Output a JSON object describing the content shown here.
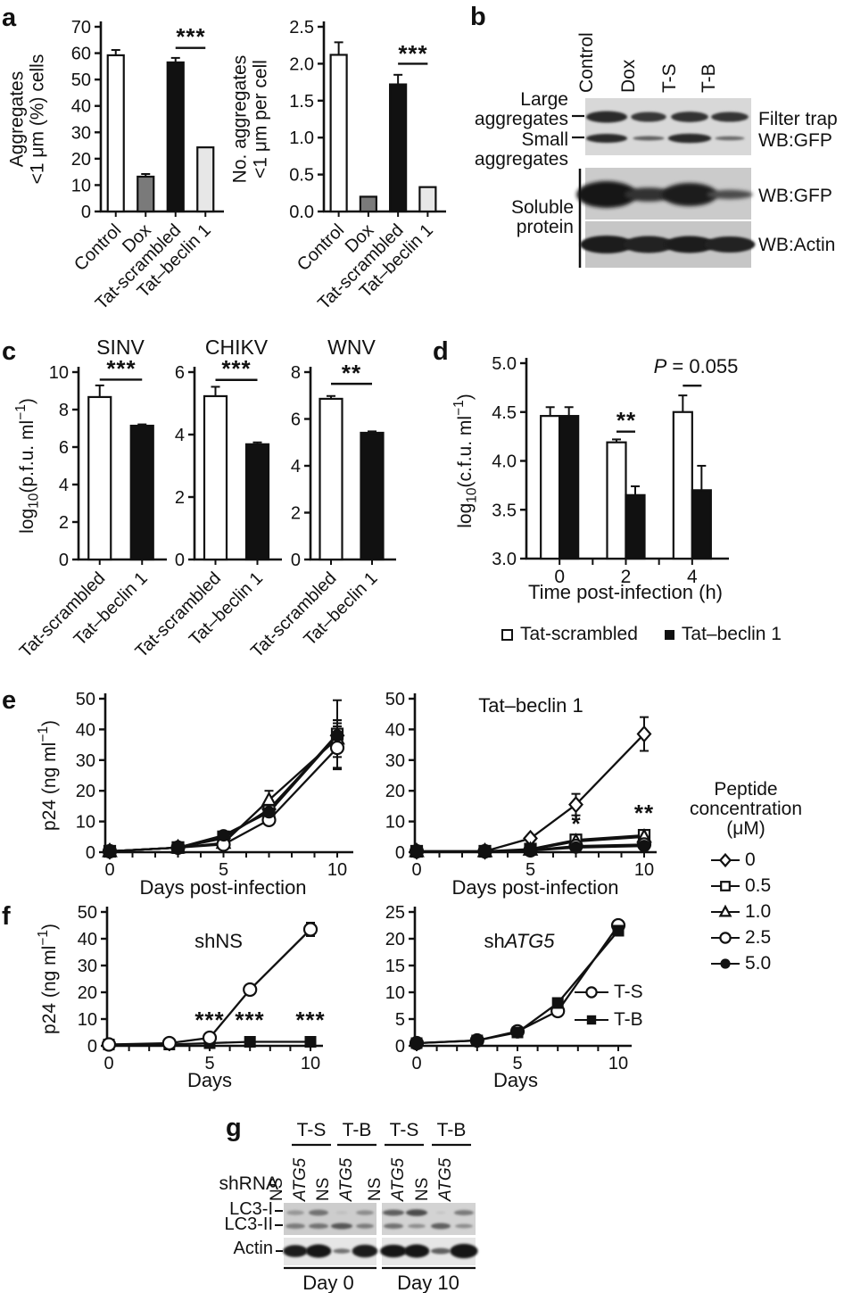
{
  "panels": {
    "a": {
      "letter": "a"
    },
    "b": {
      "letter": "b",
      "lanes": [
        "Control",
        "Dox",
        "T-S",
        "T-B"
      ],
      "left_labels": [
        [
          "Large",
          "aggregates"
        ],
        [
          "Small",
          "aggregates"
        ],
        [
          "Soluble",
          "protein"
        ]
      ],
      "right_labels": [
        "Filter trap",
        "WB:GFP",
        "WB:GFP",
        "WB:Actin"
      ],
      "blots": {
        "filter_trap": {
          "rows": [
            [
              {
                "i": 0.88,
                "w": 1.05,
                "h": 1
              },
              {
                "i": 0.8,
                "w": 0.9,
                "h": 0.85
              },
              {
                "i": 0.85,
                "w": 0.95,
                "h": 0.9
              },
              {
                "i": 0.82,
                "w": 0.95,
                "h": 0.85
              }
            ],
            [
              {
                "i": 0.88,
                "w": 1.05,
                "h": 1
              },
              {
                "i": 0.6,
                "w": 0.8,
                "h": 0.5
              },
              {
                "i": 0.88,
                "w": 1.1,
                "h": 1.05
              },
              {
                "i": 0.55,
                "w": 0.75,
                "h": 0.45
              }
            ]
          ]
        },
        "soluble_gfp": {
          "rows": [
            [
              {
                "i": 0.98,
                "w": 1.25,
                "h": 1.15
              },
              {
                "i": 0.85,
                "w": 1.0,
                "h": 0.6
              },
              {
                "i": 0.95,
                "w": 1.15,
                "h": 1.0
              },
              {
                "i": 0.7,
                "w": 0.95,
                "h": 0.4
              }
            ]
          ]
        },
        "actin": {
          "rows": [
            [
              {
                "i": 0.95,
                "w": 1.1,
                "h": 1
              },
              {
                "i": 0.93,
                "w": 1.05,
                "h": 0.95
              },
              {
                "i": 0.94,
                "w": 1.05,
                "h": 0.95
              },
              {
                "i": 0.92,
                "w": 1.05,
                "h": 0.9
              }
            ]
          ]
        }
      }
    },
    "c": {
      "letter": "c"
    },
    "d": {
      "letter": "d",
      "legend": [
        {
          "marker": "square-open",
          "label": "Tat-scrambled"
        },
        {
          "marker": "square-filled",
          "label": "Tat–beclin 1"
        }
      ]
    },
    "e": {
      "letter": "e",
      "legend": {
        "title_lines": [
          "Peptide",
          "concentration",
          "(μM)"
        ],
        "items": [
          {
            "marker": "diamond-open",
            "label": "0"
          },
          {
            "marker": "square-open",
            "label": "0.5"
          },
          {
            "marker": "triangle-open",
            "label": "1.0"
          },
          {
            "marker": "circle-open",
            "label": "2.5"
          },
          {
            "marker": "circle-filled",
            "label": "5.0"
          }
        ]
      }
    },
    "f": {
      "letter": "f"
    },
    "g": {
      "letter": "g",
      "shrna_label": "shRNA",
      "group_labels": [
        "T-S",
        "T-B",
        "T-S",
        "T-B"
      ],
      "lane_labels": [
        "NS",
        "ATG5",
        "NS",
        "ATG5",
        "NS",
        "ATG5",
        "NS",
        "ATG5"
      ],
      "row_labels": [
        "LC3-I",
        "LC3-II",
        "Actin"
      ],
      "day_labels": [
        "Day 0",
        "Day 10"
      ],
      "blots": {
        "lc3": [
          {
            "rows": [
              [
                {
                  "i": 0.3,
                  "w": 0.9,
                  "h": 0.8
                },
                {
                  "i": 0.5,
                  "w": 1.0,
                  "h": 1.0
                },
                {
                  "i": 0.08,
                  "w": 0.6,
                  "h": 0.5
                },
                {
                  "i": 0.35,
                  "w": 0.9,
                  "h": 0.8
                }
              ],
              [
                {
                  "i": 0.45,
                  "w": 1.0,
                  "h": 0.9
                },
                {
                  "i": 0.5,
                  "w": 1.0,
                  "h": 0.9
                },
                {
                  "i": 0.65,
                  "w": 1.1,
                  "h": 1.0
                },
                {
                  "i": 0.45,
                  "w": 0.9,
                  "h": 0.8
                }
              ]
            ]
          },
          {
            "rows": [
              [
                {
                  "i": 0.6,
                  "w": 1.1,
                  "h": 1.0
                },
                {
                  "i": 0.7,
                  "w": 1.1,
                  "h": 1.1
                },
                {
                  "i": 0.06,
                  "w": 0.5,
                  "h": 0.4
                },
                {
                  "i": 0.45,
                  "w": 1.0,
                  "h": 0.9
                }
              ],
              [
                {
                  "i": 0.5,
                  "w": 1.0,
                  "h": 0.9
                },
                {
                  "i": 0.35,
                  "w": 0.9,
                  "h": 0.7
                },
                {
                  "i": 0.6,
                  "w": 1.0,
                  "h": 1.0
                },
                {
                  "i": 0.35,
                  "w": 0.9,
                  "h": 0.7
                }
              ]
            ]
          }
        ],
        "actin": [
          {
            "rows": [
              [
                {
                  "i": 0.97,
                  "w": 1.05,
                  "h": 1.0
                },
                {
                  "i": 0.98,
                  "w": 1.1,
                  "h": 1.1
                },
                {
                  "i": 0.5,
                  "w": 0.75,
                  "h": 0.4
                },
                {
                  "i": 0.97,
                  "w": 1.1,
                  "h": 1.05
                }
              ]
            ]
          },
          {
            "rows": [
              [
                {
                  "i": 0.98,
                  "w": 1.15,
                  "h": 1.05
                },
                {
                  "i": 0.98,
                  "w": 1.1,
                  "h": 1.1
                },
                {
                  "i": 0.6,
                  "w": 0.85,
                  "h": 0.5
                },
                {
                  "i": 1.0,
                  "w": 1.2,
                  "h": 1.2
                }
              ]
            ]
          }
        ]
      }
    }
  },
  "chart_data": [
    {
      "id": "a1",
      "type": "bar",
      "ylabel_lines": [
        "Aggregates",
        "<1 μm (%) cells"
      ],
      "ylim": [
        0,
        70
      ],
      "yticks": [
        0,
        10,
        20,
        30,
        40,
        50,
        60,
        70
      ],
      "ytick_labels": [
        "0",
        "10",
        "20",
        "30",
        "40",
        "50",
        "60",
        "70"
      ],
      "categories": [
        "Control",
        "Dox",
        "Tat-scrambled",
        "Tat–beclin 1"
      ],
      "values": [
        59.2,
        13.2,
        56.5,
        24.3
      ],
      "errors": [
        2,
        1,
        1.7,
        0
      ],
      "bar_colors": [
        "#ffffff",
        "#7a7a7a",
        "#111111",
        "#e7e7e7"
      ],
      "sig": [
        {
          "label": "***",
          "bars": [
            2,
            3
          ],
          "y": 62
        }
      ]
    },
    {
      "id": "a2",
      "type": "bar",
      "ylabel_lines": [
        "No. aggregates",
        "<1 μm per cell"
      ],
      "ylim": [
        0,
        2.5
      ],
      "yticks": [
        0,
        0.5,
        1,
        1.5,
        2,
        2.5
      ],
      "ytick_labels": [
        "0.0",
        "0.5",
        "1.0",
        "1.5",
        "2.0",
        "2.5"
      ],
      "categories": [
        "Control",
        "Dox",
        "Tat-scrambled",
        "Tat–beclin 1"
      ],
      "values": [
        2.12,
        0.2,
        1.72,
        0.33
      ],
      "errors": [
        0.17,
        0,
        0.13,
        0
      ],
      "bar_colors": [
        "#ffffff",
        "#7a7a7a",
        "#111111",
        "#e7e7e7"
      ],
      "sig": [
        {
          "label": "***",
          "bars": [
            2,
            3
          ],
          "y": 2.0
        }
      ]
    },
    {
      "id": "c1",
      "type": "bar",
      "title": "SINV",
      "ylabel_lines": [
        "log_{10}(p.f.u. ml^{−1})"
      ],
      "ylim": [
        0,
        10
      ],
      "yticks": [
        0,
        2,
        4,
        6,
        8,
        10
      ],
      "ytick_labels": [
        "0",
        "2",
        "4",
        "6",
        "8",
        "10"
      ],
      "categories": [
        "Tat-scrambled",
        "Tat–beclin 1"
      ],
      "values": [
        8.67,
        7.14
      ],
      "errors": [
        0.62,
        0.07
      ],
      "bar_colors": [
        "#ffffff",
        "#111111"
      ],
      "sig": [
        {
          "label": "***",
          "bars": [
            0,
            1
          ],
          "y": 9.6
        }
      ]
    },
    {
      "id": "c2",
      "type": "bar",
      "title": "CHIKV",
      "ylim": [
        0,
        6
      ],
      "yticks": [
        0,
        2,
        4,
        6
      ],
      "ytick_labels": [
        "0",
        "2",
        "4",
        "6"
      ],
      "categories": [
        "Tat-scrambled",
        "Tat–beclin 1"
      ],
      "values": [
        5.23,
        3.69
      ],
      "errors": [
        0.3,
        0.06
      ],
      "bar_colors": [
        "#ffffff",
        "#111111"
      ],
      "sig": [
        {
          "label": "***",
          "bars": [
            0,
            1
          ],
          "y": 5.75
        }
      ]
    },
    {
      "id": "c3",
      "type": "bar",
      "title": "WNV",
      "ylim": [
        0,
        8
      ],
      "yticks": [
        0,
        2,
        4,
        6,
        8
      ],
      "ytick_labels": [
        "0",
        "2",
        "4",
        "6",
        "8"
      ],
      "categories": [
        "Tat-scrambled",
        "Tat–beclin 1"
      ],
      "values": [
        6.86,
        5.41
      ],
      "errors": [
        0.12,
        0.06
      ],
      "bar_colors": [
        "#ffffff",
        "#111111"
      ],
      "sig": [
        {
          "label": "**",
          "bars": [
            0,
            1
          ],
          "y": 7.5
        }
      ]
    },
    {
      "id": "d",
      "type": "grouped-bar",
      "ylabel_lines": [
        "log_{10}(c.f.u. ml^{−1})"
      ],
      "xlabel": "Time post-infection (h)",
      "ylim": [
        3,
        5
      ],
      "yticks": [
        3,
        3.5,
        4,
        4.5,
        5
      ],
      "ytick_labels": [
        "3.0",
        "3.5",
        "4.0",
        "4.5",
        "5.0"
      ],
      "categories": [
        "0",
        "2",
        "4"
      ],
      "series": [
        {
          "label": "Tat-scrambled",
          "color": "#ffffff",
          "values": [
            4.46,
            4.19,
            4.5
          ],
          "errors": [
            0.09,
            0.03,
            0.17
          ]
        },
        {
          "label": "Tat–beclin 1",
          "color": "#111111",
          "values": [
            4.46,
            3.65,
            3.7
          ],
          "errors": [
            0.09,
            0.09,
            0.25
          ]
        }
      ],
      "sig": [
        {
          "label": "**",
          "group": 1,
          "y": 4.3
        },
        {
          "label_italic": "P",
          "label_rest": " = 0.055",
          "group": 2,
          "y": 4.77
        }
      ]
    },
    {
      "id": "e1",
      "type": "line",
      "ylabel_lines": [
        "p24 (ng ml^{−1})"
      ],
      "xlabel": "Days post-infection",
      "ylim": [
        0,
        50
      ],
      "yticks": [
        0,
        10,
        20,
        30,
        40,
        50
      ],
      "ytick_labels": [
        "0",
        "10",
        "20",
        "30",
        "40",
        "50"
      ],
      "x": [
        0,
        3,
        5,
        7,
        10
      ],
      "xticks": [
        0,
        5,
        10
      ],
      "series": [
        {
          "label": "0",
          "marker": "diamond-open",
          "values": [
            0.3,
            1.5,
            4.5,
            14,
            38
          ],
          "errors": [
            0,
            0,
            0,
            1.5,
            5
          ]
        },
        {
          "label": "0.5",
          "marker": "square-open",
          "values": [
            0.3,
            1.5,
            5,
            13.5,
            38.5
          ],
          "errors": [
            0,
            0,
            0,
            1.5,
            11
          ]
        },
        {
          "label": "1.0",
          "marker": "triangle-open",
          "values": [
            0.3,
            1.5,
            3,
            17,
            37
          ],
          "errors": [
            0,
            0,
            0,
            3,
            6
          ]
        },
        {
          "label": "2.5",
          "marker": "circle-open",
          "values": [
            0.3,
            1.5,
            2.5,
            10.5,
            34
          ],
          "errors": [
            0,
            0,
            0,
            1.5,
            7
          ]
        },
        {
          "label": "5.0",
          "marker": "circle-filled",
          "values": [
            0.3,
            1.5,
            5.5,
            13,
            38
          ],
          "errors": [
            0,
            0,
            0,
            1,
            4
          ]
        }
      ]
    },
    {
      "id": "e2",
      "type": "line",
      "title": "Tat–beclin 1",
      "xlabel": "Days post-infection",
      "ylim": [
        0,
        50
      ],
      "yticks": [
        0,
        10,
        20,
        30,
        40,
        50
      ],
      "ytick_labels": [
        "0",
        "10",
        "20",
        "30",
        "40",
        "50"
      ],
      "x": [
        0,
        3,
        5,
        7,
        10
      ],
      "xticks": [
        0,
        5,
        10
      ],
      "series": [
        {
          "label": "0",
          "marker": "diamond-open",
          "values": [
            0.3,
            0.3,
            4.5,
            15.5,
            38.5
          ],
          "errors": [
            0,
            0,
            0,
            3.5,
            5.5
          ]
        },
        {
          "label": "0.5",
          "marker": "square-open",
          "values": [
            0.3,
            0.3,
            1,
            4,
            5.5
          ],
          "errors": [
            0,
            0,
            0,
            0,
            1.5
          ]
        },
        {
          "label": "1.0",
          "marker": "triangle-open",
          "values": [
            0.3,
            0.3,
            0.8,
            3.5,
            5
          ],
          "errors": [
            0,
            0,
            0,
            0,
            0
          ]
        },
        {
          "label": "2.5",
          "marker": "circle-open",
          "values": [
            0.3,
            0.3,
            0.6,
            2,
            2.5
          ],
          "errors": [
            0,
            0,
            0,
            0,
            0
          ]
        },
        {
          "label": "5.0",
          "marker": "circle-filled",
          "values": [
            0.3,
            0.3,
            0.5,
            1.5,
            2
          ],
          "errors": [
            0,
            0,
            0,
            0,
            0
          ]
        }
      ],
      "stars": [
        {
          "label": "*",
          "x": 7,
          "y": 8.2
        },
        {
          "label": "**",
          "x": 10,
          "y": 11
        }
      ]
    },
    {
      "id": "f1",
      "type": "line",
      "title": "shNS",
      "ylabel_lines": [
        "p24 (ng ml^{−1})"
      ],
      "xlabel": "Days",
      "ylim": [
        0,
        50
      ],
      "yticks": [
        0,
        10,
        20,
        30,
        40,
        50
      ],
      "ytick_labels": [
        "0",
        "10",
        "20",
        "30",
        "40",
        "50"
      ],
      "x": [
        0,
        3,
        5,
        7,
        10
      ],
      "xticks": [
        0,
        5,
        10
      ],
      "series": [
        {
          "label": "T-B",
          "marker": "square-filled",
          "values": [
            0.5,
            0.5,
            1,
            1.5,
            1.5
          ],
          "errors": [
            0,
            0,
            0,
            0,
            0
          ]
        },
        {
          "label": "T-S",
          "marker": "circle-open",
          "values": [
            0.5,
            1,
            3,
            21,
            43.5
          ],
          "errors": [
            0,
            0,
            0,
            0,
            2.5
          ]
        }
      ],
      "stars": [
        {
          "label": "***",
          "x": 5,
          "y": 6.5
        },
        {
          "label": "***",
          "x": 7,
          "y": 6.5
        },
        {
          "label": "***",
          "x": 10,
          "y": 6.5
        }
      ]
    },
    {
      "id": "f2",
      "type": "line",
      "title_prefix": "sh",
      "title_italic": "ATG5",
      "xlabel": "Days",
      "ylim": [
        0,
        25
      ],
      "yticks": [
        0,
        5,
        10,
        15,
        20,
        25
      ],
      "ytick_labels": [
        "0",
        "5",
        "10",
        "15",
        "20",
        "25"
      ],
      "x": [
        0,
        3,
        5,
        7,
        10
      ],
      "xticks": [
        0,
        5,
        10
      ],
      "series": [
        {
          "label": "T-S",
          "marker": "circle-open",
          "values": [
            0.5,
            1,
            2.7,
            6.5,
            22.5
          ],
          "errors": [
            0,
            0,
            0,
            0,
            0
          ]
        },
        {
          "label": "T-B",
          "marker": "square-filled",
          "values": [
            0.5,
            1,
            2.5,
            8,
            21.5
          ],
          "errors": [
            0,
            0,
            0,
            0,
            0
          ]
        }
      ]
    }
  ]
}
